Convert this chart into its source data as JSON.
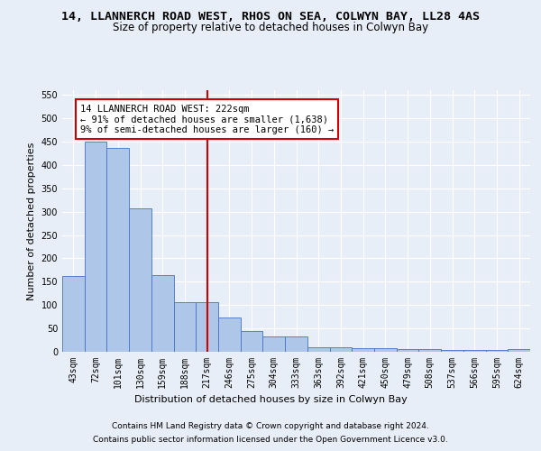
{
  "title_line1": "14, LLANNERCH ROAD WEST, RHOS ON SEA, COLWYN BAY, LL28 4AS",
  "title_line2": "Size of property relative to detached houses in Colwyn Bay",
  "xlabel": "Distribution of detached houses by size in Colwyn Bay",
  "ylabel": "Number of detached properties",
  "categories": [
    "43sqm",
    "72sqm",
    "101sqm",
    "130sqm",
    "159sqm",
    "188sqm",
    "217sqm",
    "246sqm",
    "275sqm",
    "304sqm",
    "333sqm",
    "363sqm",
    "392sqm",
    "421sqm",
    "450sqm",
    "479sqm",
    "508sqm",
    "537sqm",
    "566sqm",
    "595sqm",
    "624sqm"
  ],
  "values": [
    163,
    450,
    436,
    307,
    165,
    107,
    107,
    74,
    45,
    32,
    32,
    10,
    10,
    8,
    8,
    5,
    5,
    4,
    4,
    4,
    5
  ],
  "bar_color": "#aec6e8",
  "bar_edge_color": "#4472c4",
  "vline_x_index": 6,
  "vline_color": "#cc0000",
  "annotation_box_text": "14 LLANNERCH ROAD WEST: 222sqm\n← 91% of detached houses are smaller (1,638)\n9% of semi-detached houses are larger (160) →",
  "annotation_box_color": "#cc0000",
  "annotation_box_facecolor": "white",
  "ylim": [
    0,
    560
  ],
  "yticks": [
    0,
    50,
    100,
    150,
    200,
    250,
    300,
    350,
    400,
    450,
    500,
    550
  ],
  "footer_line1": "Contains HM Land Registry data © Crown copyright and database right 2024.",
  "footer_line2": "Contains public sector information licensed under the Open Government Licence v3.0.",
  "background_color": "#e8eef7",
  "plot_background_color": "#e8eef7",
  "title_fontsize": 9.5,
  "subtitle_fontsize": 8.5,
  "axis_label_fontsize": 8,
  "tick_fontsize": 7,
  "annotation_fontsize": 7.5,
  "footer_fontsize": 6.5
}
